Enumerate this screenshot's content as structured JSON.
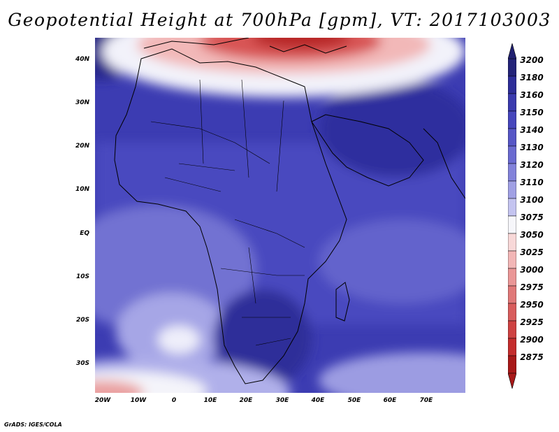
{
  "title": "Geopotential Height at 700hPa [gpm], VT: 2017103003",
  "credit": "GrADS: IGES/COLA",
  "axes": {
    "lat_labels": [
      "40N",
      "30N",
      "20N",
      "10N",
      "EQ",
      "10S",
      "20S",
      "30S"
    ],
    "lon_labels": [
      "20W",
      "10W",
      "0",
      "10E",
      "20E",
      "30E",
      "40E",
      "50E",
      "60E",
      "70E"
    ]
  },
  "colorbar": {
    "levels": [
      "3200",
      "3180",
      "3160",
      "3150",
      "3140",
      "3130",
      "3120",
      "3110",
      "3100",
      "3075",
      "3050",
      "3025",
      "3000",
      "2975",
      "2950",
      "2925",
      "2900",
      "2875"
    ],
    "colors": [
      "#232378",
      "#2d2d98",
      "#3a3aae",
      "#4646bc",
      "#5656c6",
      "#6a6ad0",
      "#8282da",
      "#a0a0e4",
      "#c4c4f0",
      "#f6f6fa",
      "#f8d8d8",
      "#f2b6b6",
      "#ea9696",
      "#e07878",
      "#d85c5c",
      "#ce4242",
      "#c42c2c",
      "#a81818"
    ]
  },
  "map_colors": {
    "deep": "#2f2fa3",
    "mid": "#5050c3",
    "light": "#7a7ad6",
    "pale": "#b8b8ec",
    "white": "#f4f4fa",
    "pink": "#f0b4b4",
    "red": "#d85252",
    "darkred": "#b82626"
  }
}
